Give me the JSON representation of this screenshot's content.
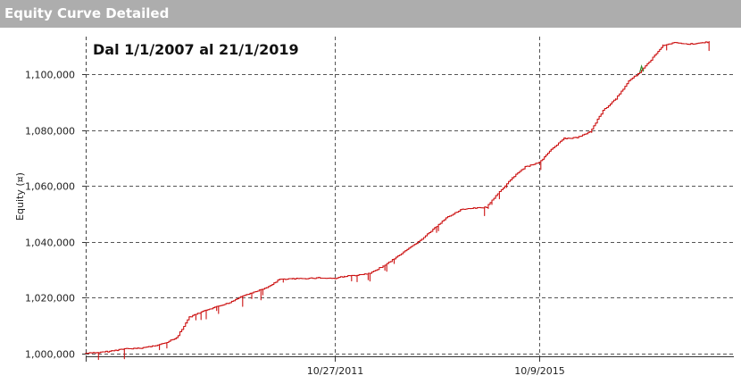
{
  "window": {
    "title": "Equity Curve Detailed"
  },
  "chart_data": {
    "type": "line",
    "title": "Dal 1/1/2007 al 21/1/2019",
    "xlabel": "",
    "ylabel": "Equity (¤)",
    "x_tick_labels": [
      "10/27/2011",
      "10/9/2015"
    ],
    "y_tick_labels": [
      "1,000,000",
      "1,020,000",
      "1,040,000",
      "1,060,000",
      "1,080,000",
      "1,100,000"
    ],
    "ylim": [
      999000,
      1113500
    ],
    "grid": true,
    "legend": "none",
    "colors": {
      "line": "#cc1111",
      "highlight": "#2e8b2e",
      "grid": "#555555",
      "title_bar": "#adadad"
    },
    "series": [
      {
        "x": [
          "2007-01-01",
          "2007-04-01",
          "2007-07-01",
          "2007-10-01",
          "2008-01-01",
          "2008-04-01",
          "2008-07-01",
          "2008-10-01",
          "2009-01-01",
          "2009-03-01",
          "2009-05-01",
          "2009-07-01",
          "2009-10-01",
          "2010-01-01",
          "2010-04-01",
          "2010-07-01",
          "2010-10-01",
          "2011-01-01",
          "2011-04-01",
          "2011-07-01",
          "2011-10-27",
          "2012-01-01",
          "2012-04-01",
          "2012-07-01",
          "2012-10-01",
          "2013-01-01",
          "2013-04-01",
          "2013-07-01",
          "2013-10-01",
          "2014-01-01",
          "2014-04-01",
          "2014-07-01",
          "2014-10-01",
          "2015-01-01",
          "2015-04-01",
          "2015-07-01",
          "2015-10-09",
          "2016-01-01",
          "2016-04-01",
          "2016-07-01",
          "2016-10-01",
          "2017-01-01",
          "2017-04-01",
          "2017-07-01",
          "2017-10-01",
          "2018-01-01",
          "2018-03-01",
          "2018-06-01",
          "2018-09-01",
          "2018-12-01",
          "2019-01-21"
        ],
        "values": [
          1000100,
          1000300,
          1000900,
          1001700,
          1001800,
          1002500,
          1003600,
          1005500,
          1013000,
          1014300,
          1015500,
          1016500,
          1018000,
          1020400,
          1022000,
          1023500,
          1026600,
          1026700,
          1026900,
          1027100,
          1026900,
          1027700,
          1028000,
          1028700,
          1031400,
          1034400,
          1037600,
          1041000,
          1045000,
          1049000,
          1051500,
          1052000,
          1052400,
          1058000,
          1063000,
          1066800,
          1068500,
          1073000,
          1077000,
          1077300,
          1079500,
          1087000,
          1091200,
          1097500,
          1101300,
          1106800,
          1110500,
          1111400,
          1110800,
          1111300,
          1111600
        ]
      }
    ]
  }
}
